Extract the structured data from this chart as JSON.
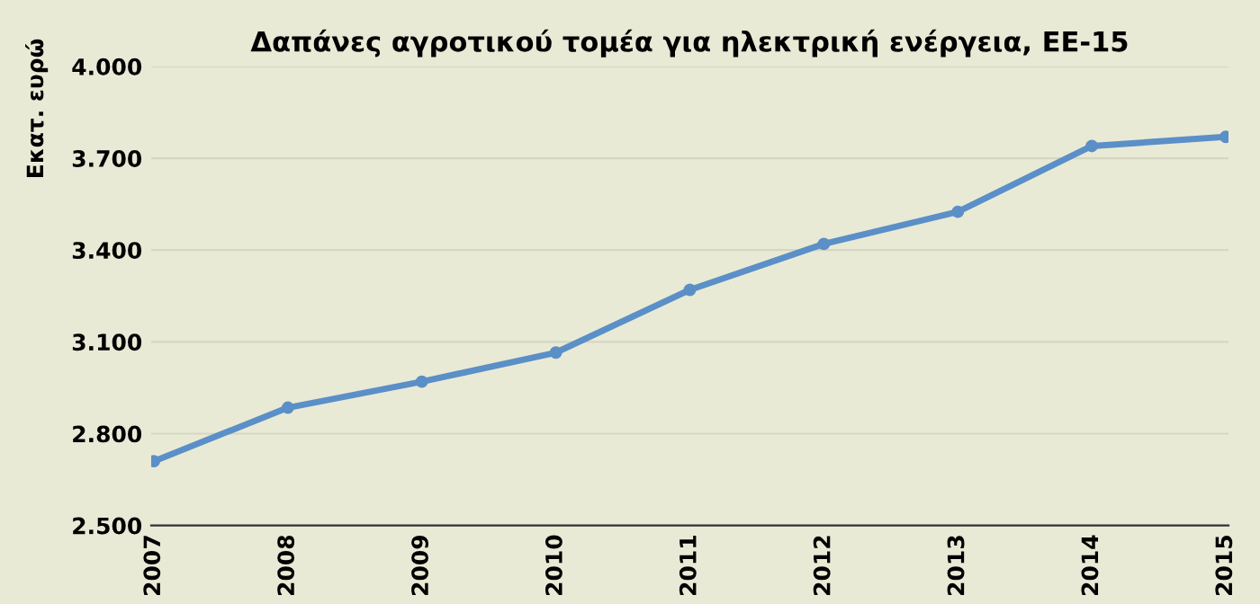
{
  "chart_data": {
    "type": "line",
    "title": "Δαπάνες αγροτικού τομέα για ηλεκτρική ενέργεια, ΕΕ-15",
    "ylabel": "Εκατ. ευρώ",
    "categories": [
      "2007",
      "2008",
      "2009",
      "2010",
      "2011",
      "2012",
      "2013",
      "2014",
      "2015"
    ],
    "series": [
      {
        "color": "#5b8fc7",
        "values": [
          2710,
          2885,
          2970,
          3065,
          3270,
          3420,
          3525,
          3740,
          3770
        ]
      }
    ],
    "ylim": [
      2500,
      4000
    ],
    "yticks": [
      {
        "value": 2500,
        "label": "2.500"
      },
      {
        "value": 2800,
        "label": "2.800"
      },
      {
        "value": 3100,
        "label": "3.100"
      },
      {
        "value": 3400,
        "label": "3.400"
      },
      {
        "value": 3700,
        "label": "3.700"
      },
      {
        "value": 4000,
        "label": "4.000"
      }
    ],
    "grid": "y",
    "marker": "circle",
    "line_style": "solid",
    "legend": false
  }
}
